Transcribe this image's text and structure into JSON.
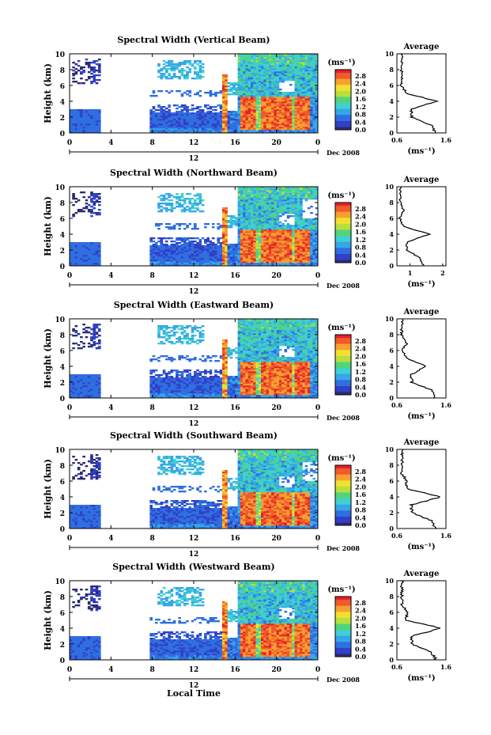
{
  "figure": {
    "x_axis_title": "Local Time",
    "month_label": "Dec 2008",
    "day_label": "12",
    "colorbar_unit": "(ms⁻¹)",
    "avg_unit": "(ms⁻¹)",
    "avg_title": "Average",
    "y_axis_title": "Height (km)"
  },
  "colorbar_ticks": [
    "2.8",
    "2.4",
    "2.0",
    "1.6",
    "1.2",
    "0.8",
    "0.4",
    "0.0"
  ],
  "colormap": [
    "#2b2b6e",
    "#3140c8",
    "#2f6fe0",
    "#36a6e8",
    "#3fd0d0",
    "#52d47a",
    "#b8e03c",
    "#f2e030",
    "#f5a030",
    "#f05a2a",
    "#e6202a"
  ],
  "chart_data": [
    {
      "type": "heatmap",
      "title": "Spectral Width (Vertical Beam)",
      "xlabel": "Local Time",
      "ylabel": "Height (km)",
      "xlim": [
        0,
        24
      ],
      "ylim": [
        0,
        10
      ],
      "xticks": [
        "0",
        "4",
        "8",
        "12",
        "16",
        "20",
        "0"
      ],
      "yticks": [
        "0",
        "2",
        "4",
        "6",
        "8",
        "10"
      ],
      "colorbar": {
        "label": "(ms⁻¹)",
        "range": [
          0.0,
          2.8
        ]
      },
      "average_profile": {
        "title": "Average",
        "xlabel": "(ms⁻¹)",
        "xticks": [
          "0.6",
          "1.6"
        ],
        "xlim": [
          0.6,
          1.6
        ],
        "height_km": [
          0,
          1,
          2,
          3,
          4,
          5,
          6,
          7,
          8,
          9,
          10
        ],
        "width": [
          1.4,
          1.3,
          0.9,
          0.9,
          1.4,
          0.8,
          0.7,
          0.7,
          0.7,
          0.7,
          0.7
        ]
      }
    },
    {
      "type": "heatmap",
      "title": "Spectral Width (Northward Beam)",
      "xlabel": "Local Time",
      "ylabel": "Height (km)",
      "xlim": [
        0,
        24
      ],
      "ylim": [
        0,
        10
      ],
      "xticks": [
        "0",
        "4",
        "8",
        "12",
        "16",
        "20",
        "0"
      ],
      "yticks": [
        "0",
        "2",
        "4",
        "6",
        "8",
        "10"
      ],
      "colorbar": {
        "label": "(ms⁻¹)",
        "range": [
          0.0,
          2.8
        ]
      },
      "average_profile": {
        "title": "Average",
        "xlabel": "(ms⁻¹)",
        "xticks": [
          "1",
          "2"
        ],
        "xlim": [
          0.6,
          2.1
        ],
        "height_km": [
          0,
          1,
          2,
          3,
          4,
          5,
          6,
          7,
          8,
          9,
          10
        ],
        "width": [
          1.4,
          1.3,
          0.9,
          0.9,
          1.6,
          0.8,
          0.7,
          0.8,
          0.7,
          0.7,
          0.7
        ]
      }
    },
    {
      "type": "heatmap",
      "title": "Spectral Width (Eastward Beam)",
      "xlabel": "Local Time",
      "ylabel": "Height (km)",
      "xlim": [
        0,
        24
      ],
      "ylim": [
        0,
        10
      ],
      "xticks": [
        "0",
        "4",
        "8",
        "12",
        "16",
        "20",
        "0"
      ],
      "yticks": [
        "0",
        "2",
        "4",
        "6",
        "8",
        "10"
      ],
      "colorbar": {
        "label": "(ms⁻¹)",
        "range": [
          0.0,
          2.8
        ]
      },
      "average_profile": {
        "title": "Average",
        "xlabel": "(ms⁻¹)",
        "xticks": [
          "0.6",
          "1.6"
        ],
        "xlim": [
          0.6,
          1.6
        ],
        "height_km": [
          0,
          1,
          2,
          3,
          4,
          5,
          6,
          7,
          8,
          9,
          10
        ],
        "width": [
          1.4,
          1.3,
          0.9,
          0.9,
          1.2,
          0.8,
          0.7,
          0.8,
          0.7,
          0.7,
          0.7
        ]
      }
    },
    {
      "type": "heatmap",
      "title": "Spectral Width (Southward Beam)",
      "xlabel": "Local Time",
      "ylabel": "Height (km)",
      "xlim": [
        0,
        24
      ],
      "ylim": [
        0,
        10
      ],
      "xticks": [
        "0",
        "4",
        "8",
        "12",
        "16",
        "20",
        "0"
      ],
      "yticks": [
        "0",
        "2",
        "4",
        "6",
        "8",
        "10"
      ],
      "colorbar": {
        "label": "(ms⁻¹)",
        "range": [
          0.0,
          2.8
        ]
      },
      "average_profile": {
        "title": "Average",
        "xlabel": "(ms⁻¹)",
        "xticks": [
          "0.6",
          "1.6"
        ],
        "xlim": [
          0.6,
          1.6
        ],
        "height_km": [
          0,
          1,
          2,
          3,
          4,
          5,
          6,
          7,
          8,
          9,
          10
        ],
        "width": [
          1.4,
          1.3,
          0.9,
          0.9,
          1.5,
          0.8,
          0.8,
          0.7,
          0.7,
          0.7,
          0.7
        ]
      }
    },
    {
      "type": "heatmap",
      "title": "Spectral Width (Westward Beam)",
      "xlabel": "Local Time",
      "ylabel": "Height (km)",
      "xlim": [
        0,
        24
      ],
      "ylim": [
        0,
        10
      ],
      "xticks": [
        "0",
        "4",
        "8",
        "12",
        "16",
        "20",
        "0"
      ],
      "yticks": [
        "0",
        "2",
        "4",
        "6",
        "8",
        "10"
      ],
      "colorbar": {
        "label": "(ms⁻¹)",
        "range": [
          0.0,
          2.8
        ]
      },
      "average_profile": {
        "title": "Average",
        "xlabel": "(ms⁻¹)",
        "xticks": [
          "0.6",
          "1.6"
        ],
        "xlim": [
          0.6,
          1.6
        ],
        "height_km": [
          0,
          1,
          2,
          3,
          4,
          5,
          6,
          7,
          8,
          9,
          10
        ],
        "width": [
          1.4,
          1.3,
          0.9,
          0.9,
          1.5,
          0.8,
          0.8,
          0.7,
          0.7,
          0.7,
          0.7
        ]
      }
    }
  ]
}
